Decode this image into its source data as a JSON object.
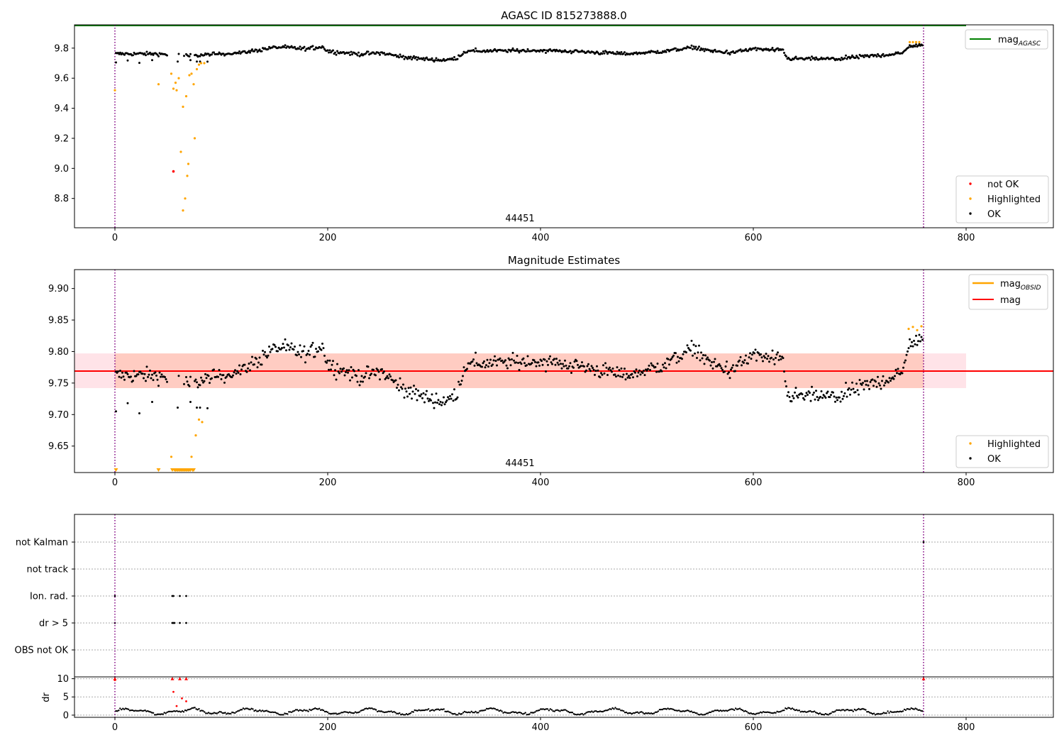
{
  "colors": {
    "ok": "#000000",
    "highlighted": "#ffa500",
    "not_ok": "#ff0000",
    "mag_agasc": "#008000",
    "mag_obsid": "#ffa500",
    "mag": "#ff0000",
    "band": "#ffa07a",
    "band_pale": "#ffc0cb",
    "obs_line": "#800080"
  },
  "chart_data": [
    {
      "type": "scatter",
      "title": "AGASC ID 815273888.0",
      "obsid_label": "44451",
      "xlabel": "",
      "ylabel": "",
      "xlim": [
        -38,
        882
      ],
      "ylim": [
        8.605,
        9.955
      ],
      "xticks": [
        "0",
        "200",
        "400",
        "600",
        "800"
      ],
      "yticks": [
        "8.8",
        "9.0",
        "9.2",
        "9.4",
        "9.6",
        "9.8"
      ],
      "vlines": [
        0,
        760
      ],
      "hline": {
        "name": "mag",
        "sub": "AGASC",
        "y": 9.95
      },
      "legend_upper": [
        {
          "name": "mag",
          "sub": "AGASC"
        }
      ],
      "legend_lower": [
        {
          "name": "not OK"
        },
        {
          "name": "Highlighted"
        },
        {
          "name": "OK"
        }
      ],
      "highlighted_points": [
        [
          0,
          9.52
        ],
        [
          41,
          9.56
        ],
        [
          53,
          9.63
        ],
        [
          55,
          9.53
        ],
        [
          57,
          9.57
        ],
        [
          58,
          9.52
        ],
        [
          60,
          9.6
        ],
        [
          62,
          9.11
        ],
        [
          64,
          8.72
        ],
        [
          64,
          9.41
        ],
        [
          66,
          8.8
        ],
        [
          67,
          9.48
        ],
        [
          68,
          8.95
        ],
        [
          69,
          9.03
        ],
        [
          70,
          9.62
        ],
        [
          72,
          9.63
        ],
        [
          74,
          9.56
        ],
        [
          75,
          9.2
        ],
        [
          77,
          9.66
        ],
        [
          79,
          9.69
        ],
        [
          81,
          9.7
        ],
        [
          84,
          9.7
        ],
        [
          747,
          9.84
        ],
        [
          750,
          9.84
        ],
        [
          753,
          9.84
        ],
        [
          756,
          9.84
        ]
      ],
      "not_ok_points": [
        [
          55,
          8.98
        ]
      ]
    },
    {
      "type": "scatter",
      "title": "Magnitude Estimates",
      "obsid_label": "44451",
      "xlabel": "",
      "ylabel": "",
      "xlim": [
        -38,
        882
      ],
      "ylim": [
        9.608,
        9.93
      ],
      "xticks": [
        "0",
        "200",
        "400",
        "600",
        "800"
      ],
      "yticks": [
        "9.65",
        "9.70",
        "9.75",
        "9.80",
        "9.85",
        "9.90"
      ],
      "vlines": [
        0,
        760
      ],
      "mag_line": 9.769,
      "band": {
        "y0": 9.742,
        "y1": 9.797,
        "x0": -38,
        "x1": 800
      },
      "obsid_band": {
        "x0": 0,
        "x1": 760
      },
      "legend_upper": [
        {
          "name": "mag",
          "sub": "OBSID"
        },
        {
          "name": "mag"
        }
      ],
      "legend_lower": [
        {
          "name": "Highlighted"
        },
        {
          "name": "OK"
        }
      ],
      "highlighted_points": [
        [
          53,
          9.633
        ],
        [
          72,
          9.633
        ],
        [
          76,
          9.667
        ],
        [
          79,
          9.692
        ],
        [
          82,
          9.688
        ],
        [
          746,
          9.836
        ],
        [
          750,
          9.839
        ],
        [
          754,
          9.834
        ],
        [
          758,
          9.84
        ]
      ],
      "clipped_highlighted_x": [
        1,
        41,
        54,
        56,
        57,
        58,
        59,
        60,
        61,
        62,
        63,
        64,
        65,
        66,
        67,
        68,
        69,
        70,
        71,
        73,
        74
      ]
    },
    {
      "type": "scatter",
      "title": "",
      "xlabel": "",
      "ylabel": "",
      "xlim": [
        -38,
        882
      ],
      "categories": [
        "not Kalman",
        "not track",
        "Ion. rad.",
        "dr > 5",
        "OBS not OK"
      ],
      "vlines": [
        0,
        760
      ],
      "flags": {
        "not Kalman": [
          760
        ],
        "not track": [],
        "Ion. rad.": [
          0,
          54,
          55,
          61,
          67
        ],
        "dr > 5": [
          0,
          54,
          55,
          56,
          61,
          67
        ],
        "OBS not OK": []
      }
    },
    {
      "type": "scatter",
      "title": "",
      "xlabel": "",
      "ylabel": "dr",
      "xlim": [
        -38,
        882
      ],
      "ylim": [
        -0.6,
        10.5
      ],
      "xticks": [
        "0",
        "200",
        "400",
        "600",
        "800"
      ],
      "yticks": [
        "0",
        "5",
        "10"
      ],
      "vlines": [
        0,
        760
      ],
      "red_markers": [
        [
          0,
          10
        ],
        [
          54,
          10
        ],
        [
          61,
          10
        ],
        [
          67,
          10
        ],
        [
          760,
          10
        ]
      ],
      "red_points": [
        [
          55,
          6.4
        ],
        [
          63,
          4.6
        ],
        [
          67,
          3.8
        ],
        [
          58,
          2.5
        ],
        [
          0,
          9.6
        ]
      ]
    }
  ]
}
